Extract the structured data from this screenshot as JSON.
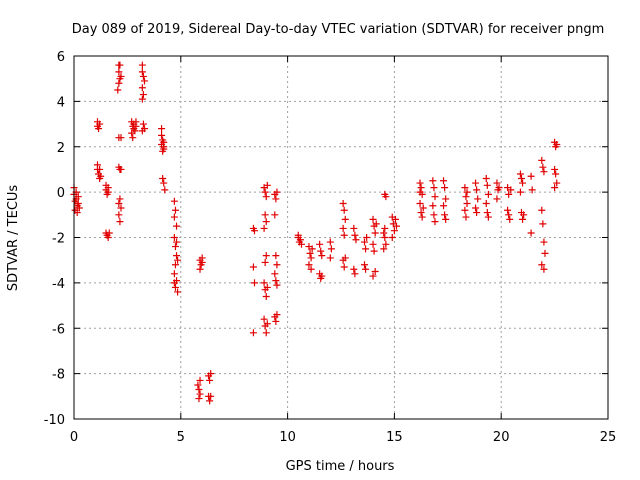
{
  "chart_data": {
    "type": "scatter",
    "title": "Day 089 of 2019, Sidereal Day-to-day VTEC variation (SDTVAR) for receiver pngm",
    "xlabel": "GPS time / hours",
    "ylabel": "SDTVAR / TECUs",
    "xlim": [
      0,
      25
    ],
    "ylim": [
      -10,
      6
    ],
    "xticks": [
      0,
      5,
      10,
      15,
      20,
      25
    ],
    "yticks": [
      -10,
      -8,
      -6,
      -4,
      -2,
      0,
      2,
      4,
      6
    ],
    "xtick_labels": [
      "0",
      "5",
      "10",
      "15",
      "20",
      "25"
    ],
    "ytick_labels": [
      "-10",
      "-8",
      "-6",
      "-4",
      "-2",
      "0",
      "2",
      "4",
      "6"
    ],
    "grid": true,
    "marker": "plus",
    "marker_color": "#e00000",
    "series": [
      {
        "name": "pngm",
        "points": [
          [
            0.0,
            0.2
          ],
          [
            0.0,
            -0.1
          ],
          [
            0.05,
            -0.4
          ],
          [
            0.05,
            -0.8
          ],
          [
            0.1,
            -0.3
          ],
          [
            0.1,
            0.0
          ],
          [
            0.15,
            -0.6
          ],
          [
            0.15,
            -0.9
          ],
          [
            0.2,
            -0.5
          ],
          [
            0.2,
            -0.2
          ],
          [
            0.25,
            -0.7
          ],
          [
            1.1,
            3.1
          ],
          [
            1.1,
            2.9
          ],
          [
            1.15,
            2.8
          ],
          [
            1.2,
            3.0
          ],
          [
            1.1,
            1.2
          ],
          [
            1.1,
            1.0
          ],
          [
            1.15,
            0.8
          ],
          [
            1.2,
            0.6
          ],
          [
            1.2,
            1.0
          ],
          [
            1.25,
            0.7
          ],
          [
            1.5,
            0.3
          ],
          [
            1.5,
            0.1
          ],
          [
            1.55,
            -0.1
          ],
          [
            1.6,
            0.2
          ],
          [
            1.6,
            0.0
          ],
          [
            1.5,
            -1.8
          ],
          [
            1.55,
            -1.9
          ],
          [
            1.6,
            -2.0
          ],
          [
            1.65,
            -1.8
          ],
          [
            2.1,
            5.6
          ],
          [
            2.1,
            5.3
          ],
          [
            2.15,
            5.0
          ],
          [
            2.1,
            4.8
          ],
          [
            2.05,
            4.5
          ],
          [
            2.2,
            5.1
          ],
          [
            2.15,
            5.6
          ],
          [
            2.1,
            2.4
          ],
          [
            2.2,
            2.4
          ],
          [
            2.1,
            1.1
          ],
          [
            2.15,
            1.0
          ],
          [
            2.2,
            1.0
          ],
          [
            2.1,
            -0.5
          ],
          [
            2.15,
            -0.3
          ],
          [
            2.2,
            -0.7
          ],
          [
            2.1,
            -1.0
          ],
          [
            2.15,
            -1.3
          ],
          [
            2.7,
            3.1
          ],
          [
            2.75,
            2.9
          ],
          [
            2.8,
            2.8
          ],
          [
            2.7,
            2.6
          ],
          [
            2.75,
            2.4
          ],
          [
            2.8,
            3.0
          ],
          [
            2.85,
            2.7
          ],
          [
            2.9,
            3.1
          ],
          [
            2.9,
            2.9
          ],
          [
            3.2,
            5.6
          ],
          [
            3.2,
            5.3
          ],
          [
            3.25,
            5.1
          ],
          [
            3.3,
            4.9
          ],
          [
            3.2,
            4.6
          ],
          [
            3.25,
            4.3
          ],
          [
            3.2,
            4.1
          ],
          [
            3.25,
            3.0
          ],
          [
            3.3,
            2.8
          ],
          [
            3.2,
            2.7
          ],
          [
            4.1,
            2.8
          ],
          [
            4.1,
            2.5
          ],
          [
            4.15,
            2.3
          ],
          [
            4.1,
            2.1
          ],
          [
            4.2,
            1.9
          ],
          [
            4.15,
            1.8
          ],
          [
            4.2,
            2.0
          ],
          [
            4.2,
            2.2
          ],
          [
            4.15,
            0.6
          ],
          [
            4.2,
            0.4
          ],
          [
            4.25,
            0.1
          ],
          [
            4.7,
            -0.4
          ],
          [
            4.75,
            -0.8
          ],
          [
            4.7,
            -1.1
          ],
          [
            4.8,
            -1.5
          ],
          [
            4.7,
            -2.0
          ],
          [
            4.75,
            -2.4
          ],
          [
            4.8,
            -2.8
          ],
          [
            4.75,
            -3.2
          ],
          [
            4.7,
            -3.6
          ],
          [
            4.8,
            -3.9
          ],
          [
            4.75,
            -4.2
          ],
          [
            4.85,
            -4.4
          ],
          [
            4.7,
            -4.0
          ],
          [
            4.85,
            -3.0
          ],
          [
            4.8,
            -2.2
          ],
          [
            5.9,
            -3.0
          ],
          [
            5.95,
            -3.2
          ],
          [
            6.0,
            -3.1
          ],
          [
            5.9,
            -3.4
          ],
          [
            6.0,
            -2.9
          ],
          [
            5.8,
            -8.5
          ],
          [
            5.85,
            -8.7
          ],
          [
            5.9,
            -8.9
          ],
          [
            5.85,
            -9.1
          ],
          [
            5.9,
            -8.3
          ],
          [
            6.3,
            -8.1
          ],
          [
            6.35,
            -8.3
          ],
          [
            6.4,
            -8.0
          ],
          [
            6.3,
            -9.0
          ],
          [
            6.35,
            -9.2
          ],
          [
            6.4,
            -9.0
          ],
          [
            8.4,
            -1.6
          ],
          [
            8.45,
            -1.7
          ],
          [
            8.4,
            -3.3
          ],
          [
            8.45,
            -4.0
          ],
          [
            8.4,
            -6.2
          ],
          [
            8.9,
            0.2
          ],
          [
            8.95,
            0.0
          ],
          [
            9.0,
            -0.2
          ],
          [
            9.05,
            0.3
          ],
          [
            8.95,
            -1.0
          ],
          [
            9.0,
            -1.3
          ],
          [
            8.9,
            -1.6
          ],
          [
            9.0,
            -2.8
          ],
          [
            8.95,
            -3.1
          ],
          [
            8.9,
            -4.0
          ],
          [
            8.95,
            -4.3
          ],
          [
            9.0,
            -4.6
          ],
          [
            9.05,
            -4.2
          ],
          [
            8.9,
            -5.6
          ],
          [
            8.95,
            -5.9
          ],
          [
            9.0,
            -6.2
          ],
          [
            9.05,
            -5.8
          ],
          [
            9.4,
            -0.1
          ],
          [
            9.45,
            -0.3
          ],
          [
            9.5,
            0.0
          ],
          [
            9.4,
            -1.0
          ],
          [
            9.45,
            -2.8
          ],
          [
            9.5,
            -3.2
          ],
          [
            9.4,
            -3.6
          ],
          [
            9.45,
            -3.9
          ],
          [
            9.5,
            -4.1
          ],
          [
            9.4,
            -5.5
          ],
          [
            9.45,
            -5.7
          ],
          [
            9.5,
            -5.4
          ],
          [
            10.5,
            -2.0
          ],
          [
            10.55,
            -2.2
          ],
          [
            10.6,
            -2.1
          ],
          [
            10.65,
            -2.3
          ],
          [
            10.5,
            -1.9
          ],
          [
            11.0,
            -2.4
          ],
          [
            11.05,
            -2.7
          ],
          [
            11.1,
            -2.9
          ],
          [
            11.0,
            -3.2
          ],
          [
            11.1,
            -3.4
          ],
          [
            11.15,
            -2.5
          ],
          [
            11.5,
            -2.3
          ],
          [
            11.55,
            -2.6
          ],
          [
            11.6,
            -2.8
          ],
          [
            11.5,
            -3.6
          ],
          [
            11.55,
            -3.8
          ],
          [
            11.6,
            -3.7
          ],
          [
            12.0,
            -2.2
          ],
          [
            12.05,
            -2.5
          ],
          [
            12.0,
            -2.9
          ],
          [
            12.6,
            -0.5
          ],
          [
            12.65,
            -0.8
          ],
          [
            12.7,
            -1.2
          ],
          [
            12.6,
            -1.6
          ],
          [
            12.65,
            -1.9
          ],
          [
            12.6,
            -3.0
          ],
          [
            12.65,
            -3.3
          ],
          [
            12.7,
            -2.9
          ],
          [
            13.1,
            -1.6
          ],
          [
            13.15,
            -1.9
          ],
          [
            13.2,
            -2.1
          ],
          [
            13.1,
            -3.4
          ],
          [
            13.15,
            -3.6
          ],
          [
            13.6,
            -2.2
          ],
          [
            13.65,
            -2.5
          ],
          [
            13.7,
            -2.0
          ],
          [
            13.6,
            -3.2
          ],
          [
            13.65,
            -3.4
          ],
          [
            14.0,
            -1.2
          ],
          [
            14.05,
            -1.5
          ],
          [
            14.1,
            -1.8
          ],
          [
            14.0,
            -2.3
          ],
          [
            14.05,
            -2.6
          ],
          [
            14.1,
            -3.5
          ],
          [
            14.0,
            -3.7
          ],
          [
            14.15,
            -1.4
          ],
          [
            14.5,
            -1.8
          ],
          [
            14.55,
            -2.0
          ],
          [
            14.6,
            -2.3
          ],
          [
            14.5,
            -2.5
          ],
          [
            14.55,
            -1.6
          ],
          [
            14.6,
            -0.2
          ],
          [
            14.55,
            -0.1
          ],
          [
            14.9,
            -1.1
          ],
          [
            14.95,
            -1.4
          ],
          [
            15.0,
            -1.7
          ],
          [
            14.9,
            -2.0
          ],
          [
            15.05,
            -1.2
          ],
          [
            15.1,
            -1.5
          ],
          [
            16.2,
            0.4
          ],
          [
            16.25,
            0.2
          ],
          [
            16.3,
            -0.1
          ],
          [
            16.2,
            -0.5
          ],
          [
            16.25,
            -0.9
          ],
          [
            16.3,
            -1.1
          ],
          [
            16.35,
            -0.7
          ],
          [
            16.2,
            0.0
          ],
          [
            16.8,
            0.5
          ],
          [
            16.85,
            0.2
          ],
          [
            16.9,
            -0.2
          ],
          [
            16.8,
            -0.6
          ],
          [
            16.85,
            -1.0
          ],
          [
            16.9,
            -1.3
          ],
          [
            17.3,
            0.5
          ],
          [
            17.35,
            0.2
          ],
          [
            17.4,
            -0.3
          ],
          [
            17.3,
            -0.6
          ],
          [
            17.35,
            -1.0
          ],
          [
            17.4,
            -1.2
          ],
          [
            18.3,
            0.2
          ],
          [
            18.35,
            -0.2
          ],
          [
            18.4,
            -0.5
          ],
          [
            18.3,
            -0.8
          ],
          [
            18.35,
            -1.1
          ],
          [
            18.4,
            0.0
          ],
          [
            18.8,
            0.4
          ],
          [
            18.85,
            0.1
          ],
          [
            18.9,
            -0.3
          ],
          [
            18.8,
            -0.7
          ],
          [
            18.85,
            -0.9
          ],
          [
            19.3,
            0.6
          ],
          [
            19.35,
            0.3
          ],
          [
            19.4,
            -0.1
          ],
          [
            19.3,
            -0.5
          ],
          [
            19.35,
            -0.9
          ],
          [
            19.4,
            -1.1
          ],
          [
            19.8,
            0.4
          ],
          [
            19.85,
            0.1
          ],
          [
            19.9,
            0.2
          ],
          [
            19.8,
            -0.3
          ],
          [
            20.3,
            0.2
          ],
          [
            20.35,
            -0.1
          ],
          [
            20.3,
            -0.8
          ],
          [
            20.35,
            -1.0
          ],
          [
            20.4,
            -1.2
          ],
          [
            20.45,
            0.1
          ],
          [
            20.9,
            0.8
          ],
          [
            20.95,
            0.6
          ],
          [
            21.0,
            0.4
          ],
          [
            20.9,
            0.0
          ],
          [
            20.95,
            -0.9
          ],
          [
            21.0,
            -1.2
          ],
          [
            21.05,
            -1.0
          ],
          [
            21.4,
            0.7
          ],
          [
            21.45,
            0.1
          ],
          [
            21.4,
            -1.8
          ],
          [
            21.9,
            1.4
          ],
          [
            21.95,
            1.1
          ],
          [
            22.0,
            0.9
          ],
          [
            21.9,
            -0.8
          ],
          [
            21.95,
            -1.4
          ],
          [
            22.0,
            -2.2
          ],
          [
            22.05,
            -2.7
          ],
          [
            21.9,
            -3.2
          ],
          [
            22.0,
            -3.4
          ],
          [
            22.5,
            2.2
          ],
          [
            22.55,
            2.0
          ],
          [
            22.6,
            2.1
          ],
          [
            22.5,
            1.0
          ],
          [
            22.55,
            0.8
          ],
          [
            22.6,
            0.4
          ],
          [
            22.5,
            0.2
          ]
        ]
      }
    ]
  }
}
